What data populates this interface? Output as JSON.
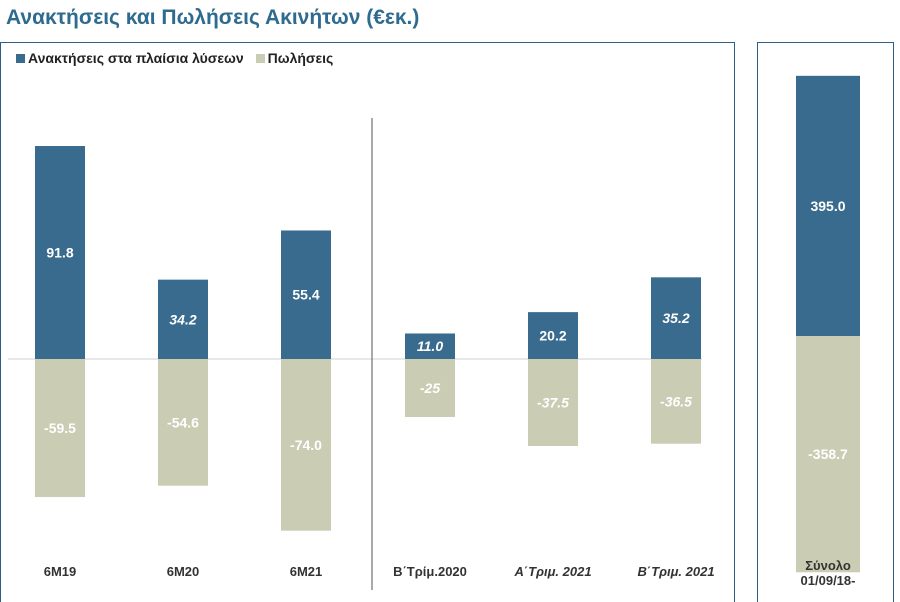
{
  "title": "Ανακτήσεις και Πωλήσεις Ακινήτων (€εκ.)",
  "colors": {
    "acquisitions": "#386b8d",
    "sales": "#cbccb4",
    "title": "#2e6b8f",
    "frame": "#2e5f86"
  },
  "chart_data": {
    "type": "bar",
    "stacked": true,
    "title": "Ανακτήσεις και Πωλήσεις Ακινήτων (€εκ.)",
    "legend_position": "top-left",
    "categories": [
      "6M19",
      "6M20",
      "6M21",
      "Β΄Τρίμ.2020",
      "Α΄Τριμ. 2021",
      "Β΄Τριμ. 2021",
      "Σύνολο 01/09/18-"
    ],
    "category_lines": [
      [
        "6M19"
      ],
      [
        "6M20"
      ],
      [
        "6M21"
      ],
      [
        "Β΄Τρίμ.2020"
      ],
      [
        "Α΄Τριμ. 2021"
      ],
      [
        "Β΄Τριμ. 2021"
      ],
      [
        "Σύνολο",
        "01/09/18-"
      ]
    ],
    "italic_categories": [
      false,
      false,
      false,
      false,
      true,
      true,
      false
    ],
    "series": [
      {
        "name": "Ανακτήσεις στα πλαίσια λύσεων",
        "values": [
          91.8,
          34.2,
          55.4,
          11.0,
          20.2,
          35.2,
          395.0
        ],
        "labels": [
          "91.8",
          "34.2",
          "55.4",
          "11.0",
          "20.2",
          "35.2",
          "395.0"
        ],
        "italic": [
          false,
          true,
          false,
          true,
          false,
          true,
          false
        ]
      },
      {
        "name": "Πωλήσεις",
        "values": [
          -59.5,
          -54.6,
          -74.0,
          -25,
          -37.5,
          -36.5,
          -358.7
        ],
        "labels": [
          "-59.5",
          "-54.6",
          "-74.0",
          "-25",
          "-37.5",
          "-36.5",
          "-358.7"
        ],
        "italic": [
          false,
          false,
          false,
          true,
          true,
          true,
          false
        ]
      }
    ],
    "groups": [
      {
        "indices": [
          0,
          1,
          2
        ]
      },
      {
        "indices": [
          3,
          4,
          5
        ]
      },
      {
        "indices": [
          6
        ]
      }
    ],
    "main_ylim": [
      -75,
      92
    ],
    "total_ylim": [
      -360,
      396
    ]
  }
}
